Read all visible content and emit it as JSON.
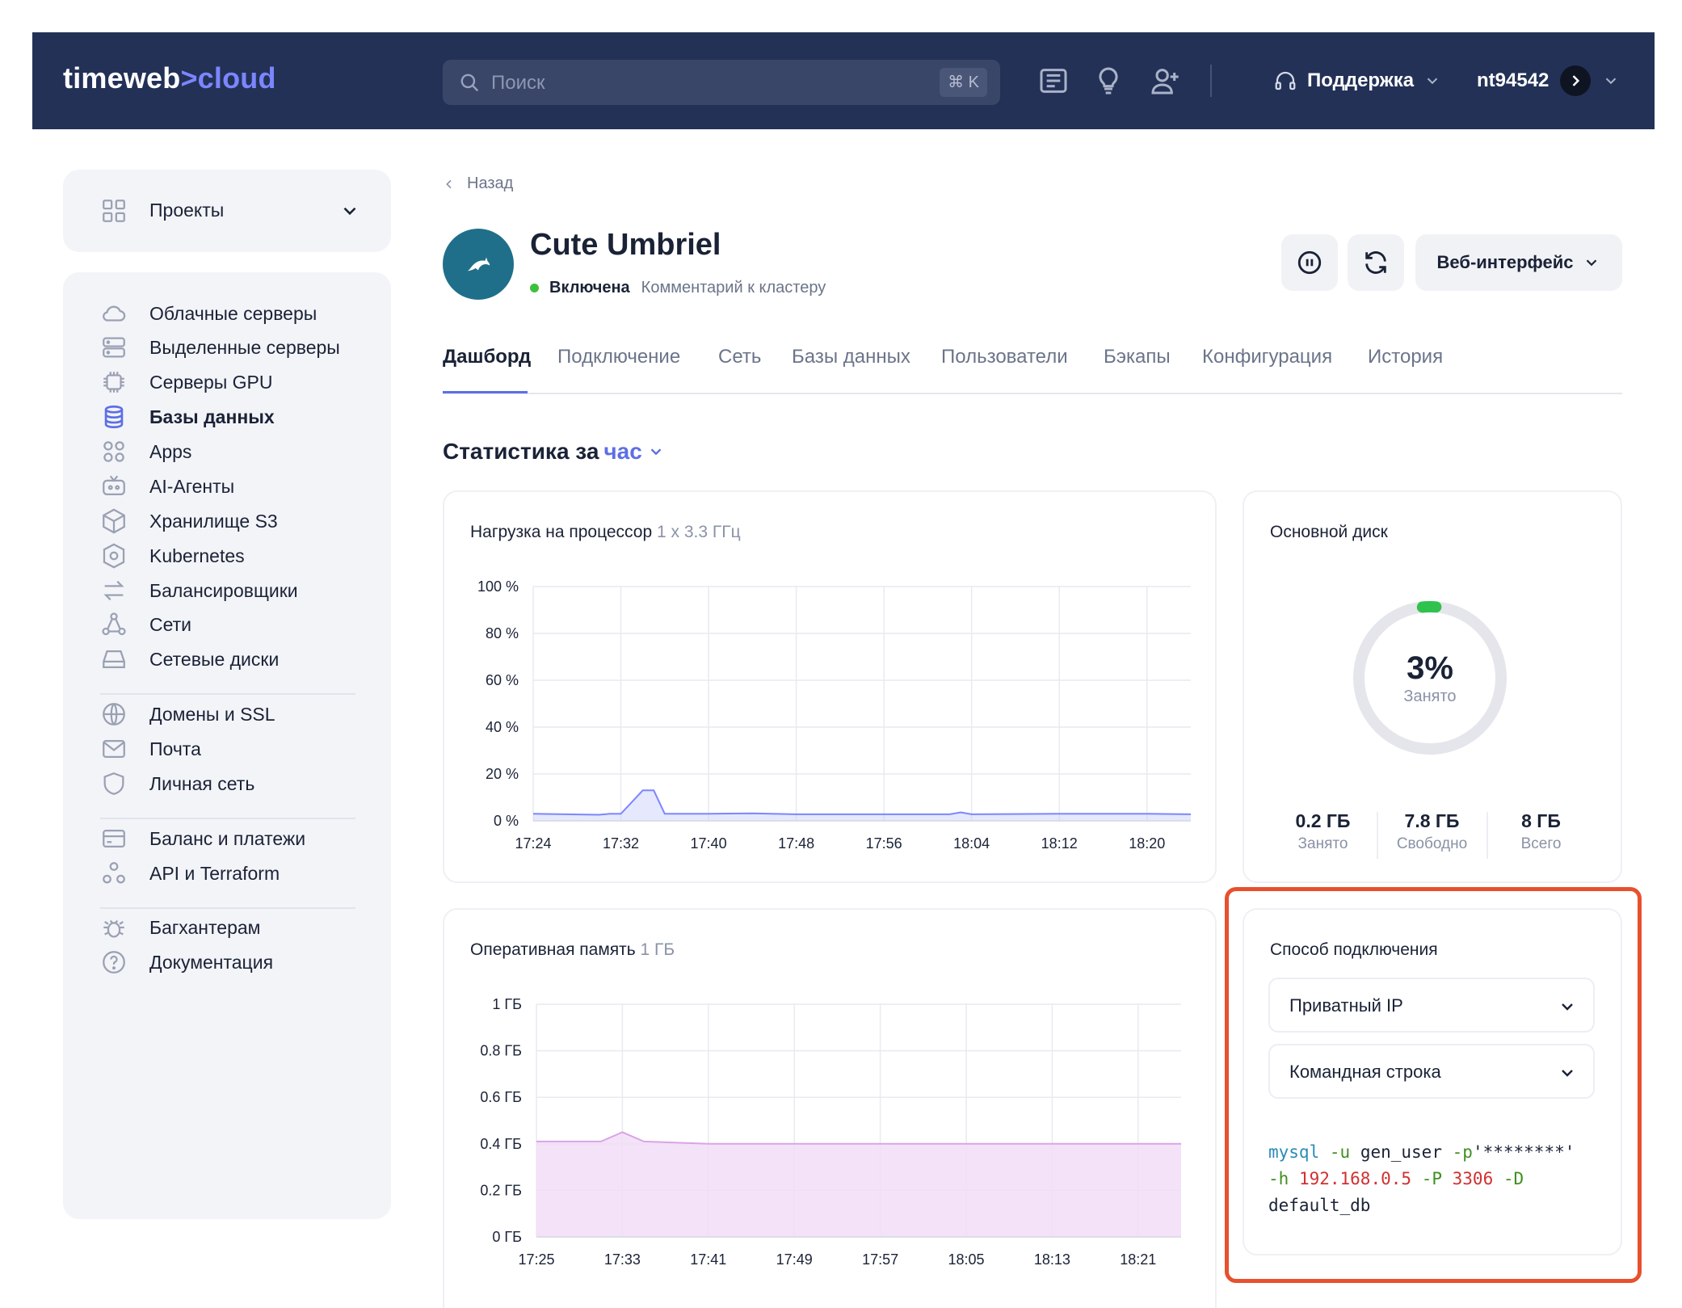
{
  "header": {
    "logo_left": "timeweb",
    "logo_sep": ">",
    "logo_right": "cloud",
    "search_placeholder": "Поиск",
    "search_shortcut": "⌘ K",
    "icons": [
      "news-icon",
      "lightbulb-icon",
      "add-user-icon"
    ],
    "support_label": "Поддержка",
    "username": "nt94542"
  },
  "sidebar": {
    "projects_label": "Проекты",
    "items": [
      {
        "label": "Облачные серверы",
        "icon": "cloud-icon"
      },
      {
        "label": "Выделенные серверы",
        "icon": "server-icon"
      },
      {
        "label": "Серверы GPU",
        "icon": "chip-icon"
      },
      {
        "label": "Базы данных",
        "icon": "database-icon",
        "active": true
      },
      {
        "label": "Apps",
        "icon": "apps-icon"
      },
      {
        "label": "AI-Агенты",
        "icon": "robot-icon"
      },
      {
        "label": "Хранилище S3",
        "icon": "box-icon"
      },
      {
        "label": "Kubernetes",
        "icon": "kubernetes-icon"
      },
      {
        "label": "Балансировщики",
        "icon": "balancer-icon"
      },
      {
        "label": "Сети",
        "icon": "network-icon"
      },
      {
        "label": "Сетевые диски",
        "icon": "disk-icon"
      },
      {
        "label": "Домены и SSL",
        "icon": "globe-icon"
      },
      {
        "label": "Почта",
        "icon": "mail-icon"
      },
      {
        "label": "Личная сеть",
        "icon": "shield-icon"
      },
      {
        "label": "Баланс и платежи",
        "icon": "card-icon"
      },
      {
        "label": "API и Terraform",
        "icon": "api-icon"
      },
      {
        "label": "Багхантерам",
        "icon": "bug-icon"
      },
      {
        "label": "Документация",
        "icon": "help-icon"
      }
    ]
  },
  "page": {
    "back_label": "Назад",
    "title": "Cute Umbriel",
    "status": "Включена",
    "comment": "Комментарий к кластеру",
    "web_button": "Веб-интерфейс",
    "tabs": [
      "Дашборд",
      "Подключение",
      "Сеть",
      "Базы данных",
      "Пользователи",
      "Бэкапы",
      "Конфигурация",
      "История"
    ],
    "stats_prefix": "Статистика за",
    "stats_period": "час"
  },
  "cpu_card": {
    "title": "Нагрузка на процессор",
    "subtitle": "1 x 3.3 ГГц"
  },
  "ram_card": {
    "title": "Оперативная память",
    "subtitle": "1 ГБ"
  },
  "disk_card": {
    "title": "Основной диск",
    "percent": "3%",
    "percent_value": 3,
    "percent_label": "Занято",
    "used_value": "0.2 ГБ",
    "used_label": "Занято",
    "free_value": "7.8 ГБ",
    "free_label": "Свободно",
    "total_value": "8 ГБ",
    "total_label": "Всего"
  },
  "connection_card": {
    "title": "Способ подключения",
    "network_select": "Приватный IP",
    "method_select": "Командная строка",
    "code": {
      "cmd": "mysql",
      "flag_u": "-u",
      "user": "gen_user",
      "flag_p": "-p",
      "password": "'********'",
      "flag_h": "-h",
      "host": "192.168.0.5",
      "flag_P": "-P",
      "port": "3306",
      "flag_D": "-D",
      "db": "default_db"
    }
  },
  "chart_data": [
    {
      "type": "area",
      "title": "Нагрузка на процессор",
      "subtitle": "1 x 3.3 ГГц",
      "x_ticks": [
        "17:24",
        "17:32",
        "17:40",
        "17:48",
        "17:56",
        "18:04",
        "18:12",
        "18:20"
      ],
      "y_ticks": [
        "0 %",
        "20 %",
        "40 %",
        "60 %",
        "80 %",
        "100 %"
      ],
      "ylim": [
        0,
        100
      ],
      "x_range_minutes": [
        0,
        60
      ],
      "points": [
        [
          0,
          3
        ],
        [
          6,
          2.6
        ],
        [
          7,
          3
        ],
        [
          8,
          3
        ],
        [
          10,
          13
        ],
        [
          11,
          13
        ],
        [
          12,
          3
        ],
        [
          16,
          3
        ],
        [
          20,
          3.2
        ],
        [
          24,
          2.8
        ],
        [
          32,
          2.8
        ],
        [
          38,
          2.8
        ],
        [
          39,
          3.6
        ],
        [
          40,
          2.8
        ],
        [
          48,
          3
        ],
        [
          56,
          3
        ],
        [
          60,
          2.8
        ]
      ],
      "color": "#7b86ff"
    },
    {
      "type": "area",
      "title": "Оперативная память",
      "subtitle": "1 ГБ",
      "x_ticks": [
        "17:25",
        "17:33",
        "17:41",
        "17:49",
        "17:57",
        "18:05",
        "18:13",
        "18:21"
      ],
      "y_ticks": [
        "0 ГБ",
        "0.2 ГБ",
        "0.4 ГБ",
        "0.6 ГБ",
        "0.8 ГБ",
        "1 ГБ"
      ],
      "ylim": [
        0,
        1
      ],
      "x_range_minutes": [
        0,
        60
      ],
      "points": [
        [
          0,
          0.41
        ],
        [
          6,
          0.41
        ],
        [
          8,
          0.45
        ],
        [
          10,
          0.41
        ],
        [
          16,
          0.4
        ],
        [
          24,
          0.4
        ],
        [
          32,
          0.4
        ],
        [
          40,
          0.4
        ],
        [
          48,
          0.4
        ],
        [
          56,
          0.4
        ],
        [
          60,
          0.4
        ]
      ],
      "color": "#d9a5e6"
    }
  ]
}
